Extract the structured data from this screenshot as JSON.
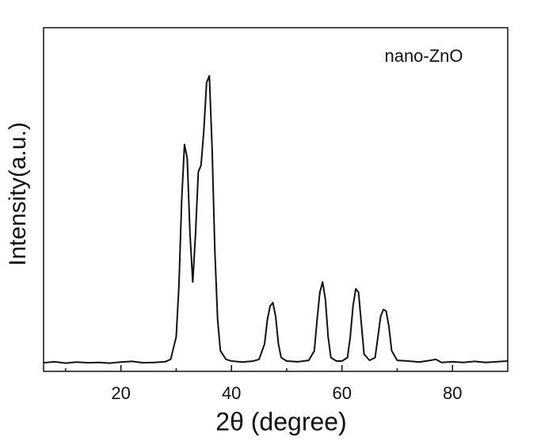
{
  "chart_data": {
    "type": "line",
    "annotation": "nano-ZnO",
    "xlabel": "2θ (degree)",
    "ylabel": "Intensity(a.u.)",
    "xlim": [
      6,
      90
    ],
    "ylim": [
      0,
      100
    ],
    "xticks": [
      20,
      40,
      60,
      80
    ],
    "xminor_ticks": [
      10,
      30,
      50,
      70
    ],
    "color": "#111111",
    "x": [
      6,
      8,
      10,
      12,
      14,
      16,
      18,
      20,
      22,
      24,
      26,
      28,
      29,
      30,
      30.5,
      31,
      31.5,
      32,
      32.5,
      33,
      33.5,
      34,
      34.5,
      35,
      35.5,
      36,
      36.5,
      37,
      37.5,
      38,
      39,
      40,
      42,
      44,
      45,
      46,
      46.5,
      47,
      47.5,
      48,
      48.5,
      49,
      50,
      52,
      54,
      55,
      55.5,
      56,
      56.5,
      57,
      57.5,
      58,
      59,
      60,
      61,
      61.5,
      62,
      62.5,
      63,
      63.5,
      64,
      65,
      66,
      66.5,
      67,
      67.5,
      68,
      68.5,
      69,
      70,
      72,
      74,
      76,
      77,
      78,
      80,
      82,
      84,
      86,
      88,
      90
    ],
    "values": [
      2.5,
      2.8,
      2.4,
      2.7,
      2.5,
      2.6,
      2.4,
      2.7,
      2.9,
      2.5,
      2.6,
      2.8,
      3.5,
      10,
      25,
      50,
      66,
      62,
      40,
      26,
      40,
      58,
      60,
      70,
      84,
      86,
      65,
      35,
      15,
      6,
      3.5,
      3,
      2.7,
      3,
      3.5,
      8,
      15,
      19,
      20,
      16,
      8,
      4,
      3,
      2.8,
      3.2,
      6,
      15,
      23,
      26,
      21,
      10,
      4,
      3,
      3,
      4,
      10,
      19,
      24,
      23,
      14,
      5,
      3.2,
      4,
      10,
      16,
      18,
      17.5,
      13,
      6,
      3.2,
      3,
      2.7,
      3.2,
      3.5,
      2.6,
      2.8,
      2.6,
      2.9,
      2.6,
      2.8,
      3
    ]
  }
}
